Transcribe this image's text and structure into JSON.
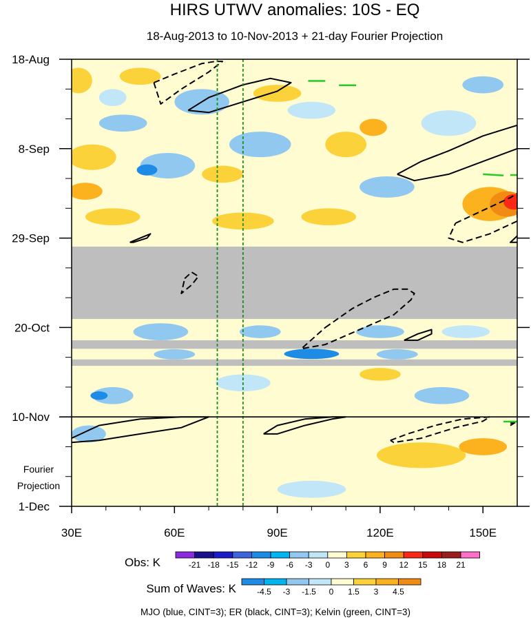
{
  "chart_data": {
    "type": "heatmap",
    "title": "HIRS UTWV anomalies: 10S - EQ",
    "subtitle": "18-Aug-2013 to 10-Nov-2013 + 21-day Fourier Projection",
    "x_axis": {
      "range": [
        30,
        160
      ],
      "ticks": [
        {
          "value": 30,
          "label": "30E"
        },
        {
          "value": 60,
          "label": "60E"
        },
        {
          "value": 90,
          "label": "90E"
        },
        {
          "value": 120,
          "label": "120E"
        },
        {
          "value": 150,
          "label": "150E"
        }
      ],
      "minor_step": 10
    },
    "y_axis": {
      "range_days": [
        0,
        105
      ],
      "ticks": [
        {
          "day": 0,
          "label": "18-Aug"
        },
        {
          "day": 21,
          "label": "8-Sep"
        },
        {
          "day": 42,
          "label": "29-Sep"
        },
        {
          "day": 63,
          "label": "20-Oct"
        },
        {
          "day": 84,
          "label": "10-Nov"
        },
        {
          "day": 105,
          "label": "1-Dec"
        }
      ],
      "minor_step_days": 7
    },
    "projection_label": [
      "Fourier",
      "Projection"
    ],
    "projection_start_day": 84,
    "reference_longitudes": [
      72.5,
      80
    ],
    "missing_data_bands_days": [
      [
        44,
        61
      ],
      [
        66,
        68
      ],
      [
        70.5,
        72
      ]
    ],
    "obs_colorbar": {
      "label": "Obs: K",
      "levels": [
        "-21",
        "-18",
        "-15",
        "-12",
        "-9",
        "-6",
        "-3",
        "0",
        "3",
        "6",
        "9",
        "12",
        "15",
        "18",
        "21"
      ],
      "colors": [
        "#8a2be2",
        "#1a0f8c",
        "#1c1cc8",
        "#3c64dc",
        "#1e8ce6",
        "#00b4f0",
        "#91c8f0",
        "#c0e6f8",
        "#fffcd2",
        "#fcd23a",
        "#fcb21e",
        "#f08c14",
        "#fa2814",
        "#c80a0a",
        "#9b1e1e",
        "#ff6ec8"
      ]
    },
    "waves_colorbar": {
      "label": "Sum of Waves: K",
      "levels": [
        "-4.5",
        "-3",
        "-1.5",
        "0",
        "1.5",
        "3",
        "4.5"
      ],
      "colors": [
        "#1e8ce6",
        "#00b4f0",
        "#91c8f0",
        "#c0e6f8",
        "#fffcd2",
        "#fcd23a",
        "#fcb21e",
        "#f08c14"
      ]
    },
    "footnote": "MJO (blue, CINT=3); ER (black, CINT=3); Kelvin (green, CINT=3)",
    "contours_solid": [
      {
        "lon": [
          64,
          70,
          80,
          88,
          94,
          90,
          80,
          70,
          64
        ],
        "day": [
          12,
          9,
          6,
          4.5,
          5.5,
          7.5,
          10,
          12.5,
          12
        ]
      },
      {
        "lon": [
          125,
          132,
          140,
          150,
          160,
          160,
          150,
          140,
          130,
          125
        ],
        "day": [
          27,
          24,
          21.5,
          18,
          15.5,
          21,
          24,
          27,
          28.5,
          27
        ]
      },
      {
        "lon": [
          47,
          50,
          53,
          52,
          48,
          47
        ],
        "day": [
          43,
          42,
          41,
          42,
          43,
          43
        ]
      },
      {
        "lon": [
          127,
          131,
          135,
          135,
          131,
          127
        ],
        "day": [
          66,
          64.5,
          63.5,
          64.5,
          66,
          66
        ]
      },
      {
        "lon": [
          30,
          38,
          50,
          62,
          70,
          70,
          62,
          50,
          38,
          30
        ],
        "day": [
          89,
          86,
          84.5,
          84,
          84,
          84,
          86.5,
          88,
          89.5,
          90
        ]
      },
      {
        "lon": [
          86,
          90,
          98,
          106,
          110,
          106,
          98,
          90,
          86
        ],
        "day": [
          88,
          86,
          84.5,
          84,
          84,
          84.5,
          86,
          88,
          88
        ]
      },
      {
        "lon": [
          160,
          158,
          160
        ],
        "day": [
          41.5,
          43,
          43
        ]
      }
    ],
    "contours_dashed": [
      {
        "lon": [
          54,
          60,
          68,
          72,
          74,
          70,
          62,
          56,
          54
        ],
        "day": [
          5.5,
          3.5,
          1,
          0.5,
          0.5,
          3,
          7,
          10.5,
          5.5
        ]
      },
      {
        "lon": [
          142,
          150,
          158,
          160,
          160,
          152,
          144,
          140,
          142
        ],
        "day": [
          38.5,
          35.5,
          32.5,
          31.5,
          38,
          41,
          43,
          42,
          38.5
        ]
      },
      {
        "lon": [
          63,
          65,
          67,
          65,
          62,
          63
        ],
        "day": [
          51.5,
          50,
          51,
          53,
          55,
          51.5
        ]
      },
      {
        "lon": [
          104,
          112,
          118,
          124,
          128,
          130,
          129,
          124,
          114,
          104,
          97,
          104
        ],
        "day": [
          63,
          58.5,
          56,
          54,
          54,
          55,
          56.5,
          60,
          63.5,
          67,
          68,
          63
        ]
      },
      {
        "lon": [
          123,
          128,
          136,
          144,
          152,
          150,
          142,
          132,
          124,
          123
        ],
        "day": [
          89.5,
          88,
          86,
          84.5,
          84,
          85,
          86.5,
          89,
          90,
          89.5
        ]
      },
      {
        "lon": [
          158,
          160,
          158
        ],
        "day": [
          85.5,
          85,
          86
        ]
      }
    ],
    "kelvin_marks": [
      {
        "lon": [
          99,
          104
        ],
        "day": [
          5.1,
          5.1
        ]
      },
      {
        "lon": [
          108,
          113
        ],
        "day": [
          6.1,
          6.1
        ]
      },
      {
        "lon": [
          150,
          156
        ],
        "day": [
          27,
          27.3
        ]
      },
      {
        "lon": [
          158,
          160
        ],
        "day": [
          27.2,
          27.2
        ]
      },
      {
        "lon": [
          156,
          160
        ],
        "day": [
          85.1,
          85.1
        ]
      }
    ],
    "field_blobs": [
      {
        "lon": 32,
        "day": 5,
        "rx": 4,
        "ry": 3,
        "c": "#fcd23a"
      },
      {
        "lon": 36,
        "day": 23,
        "rx": 7,
        "ry": 3,
        "c": "#fcd23a"
      },
      {
        "lon": 34,
        "day": 31,
        "rx": 5,
        "ry": 2,
        "c": "#fcb21e"
      },
      {
        "lon": 50,
        "day": 4,
        "rx": 6,
        "ry": 2,
        "c": "#fcd23a"
      },
      {
        "lon": 42,
        "day": 9,
        "rx": 4,
        "ry": 2,
        "c": "#c0e6f8"
      },
      {
        "lon": 45,
        "day": 15,
        "rx": 7,
        "ry": 2,
        "c": "#91c8f0"
      },
      {
        "lon": 68,
        "day": 10,
        "rx": 8,
        "ry": 3,
        "c": "#91c8f0"
      },
      {
        "lon": 58,
        "day": 25,
        "rx": 8,
        "ry": 3,
        "c": "#91c8f0"
      },
      {
        "lon": 52,
        "day": 26,
        "rx": 3,
        "ry": 1.3,
        "c": "#1e8ce6"
      },
      {
        "lon": 74,
        "day": 27,
        "rx": 6,
        "ry": 2,
        "c": "#fcd23a"
      },
      {
        "lon": 90,
        "day": 8,
        "rx": 7,
        "ry": 2,
        "c": "#fcd23a"
      },
      {
        "lon": 85,
        "day": 20,
        "rx": 9,
        "ry": 3,
        "c": "#91c8f0"
      },
      {
        "lon": 100,
        "day": 12,
        "rx": 7,
        "ry": 2,
        "c": "#c0e6f8"
      },
      {
        "lon": 110,
        "day": 20,
        "rx": 6,
        "ry": 3,
        "c": "#fcd23a"
      },
      {
        "lon": 118,
        "day": 16,
        "rx": 4,
        "ry": 2,
        "c": "#fcb21e"
      },
      {
        "lon": 122,
        "day": 30,
        "rx": 8,
        "ry": 2.5,
        "c": "#91c8f0"
      },
      {
        "lon": 140,
        "day": 15,
        "rx": 8,
        "ry": 3,
        "c": "#c0e6f8"
      },
      {
        "lon": 150,
        "day": 6,
        "rx": 6,
        "ry": 2,
        "c": "#91c8f0"
      },
      {
        "lon": 152,
        "day": 34,
        "rx": 8,
        "ry": 4,
        "c": "#fcb21e"
      },
      {
        "lon": 157,
        "day": 34,
        "rx": 5,
        "ry": 3,
        "c": "#f08c14"
      },
      {
        "lon": 159,
        "day": 33.5,
        "rx": 3,
        "ry": 1.8,
        "c": "#fa2814"
      },
      {
        "lon": 105,
        "day": 37,
        "rx": 8,
        "ry": 2,
        "c": "#fcd23a"
      },
      {
        "lon": 42,
        "day": 37,
        "rx": 8,
        "ry": 2,
        "c": "#fcd23a"
      },
      {
        "lon": 80,
        "day": 38,
        "rx": 9,
        "ry": 2,
        "c": "#fcd23a"
      },
      {
        "lon": 56,
        "day": 64,
        "rx": 8,
        "ry": 2,
        "c": "#91c8f0"
      },
      {
        "lon": 85,
        "day": 64,
        "rx": 6,
        "ry": 1.5,
        "c": "#91c8f0"
      },
      {
        "lon": 120,
        "day": 64,
        "rx": 7,
        "ry": 1.5,
        "c": "#91c8f0"
      },
      {
        "lon": 145,
        "day": 64,
        "rx": 7,
        "ry": 1.5,
        "c": "#c0e6f8"
      },
      {
        "lon": 100,
        "day": 69.2,
        "rx": 8,
        "ry": 1.2,
        "c": "#1e8ce6"
      },
      {
        "lon": 125,
        "day": 69.3,
        "rx": 6,
        "ry": 1.2,
        "c": "#91c8f0"
      },
      {
        "lon": 60,
        "day": 69.3,
        "rx": 6,
        "ry": 1.2,
        "c": "#91c8f0"
      },
      {
        "lon": 42,
        "day": 79,
        "rx": 6,
        "ry": 2,
        "c": "#91c8f0"
      },
      {
        "lon": 38,
        "day": 79,
        "rx": 2.5,
        "ry": 1,
        "c": "#1e8ce6"
      },
      {
        "lon": 80,
        "day": 76,
        "rx": 8,
        "ry": 2,
        "c": "#c0e6f8"
      },
      {
        "lon": 138,
        "day": 79,
        "rx": 8,
        "ry": 2,
        "c": "#91c8f0"
      },
      {
        "lon": 120,
        "day": 74,
        "rx": 6,
        "ry": 1.5,
        "c": "#fcd23a"
      },
      {
        "lon": 132,
        "day": 93,
        "rx": 13,
        "ry": 3,
        "c": "#fcd23a"
      },
      {
        "lon": 150,
        "day": 91,
        "rx": 7,
        "ry": 2,
        "c": "#fcb21e"
      },
      {
        "lon": 35,
        "day": 88,
        "rx": 5,
        "ry": 2,
        "c": "#91c8f0"
      },
      {
        "lon": 100,
        "day": 101,
        "rx": 10,
        "ry": 2,
        "c": "#c0e6f8"
      }
    ]
  }
}
